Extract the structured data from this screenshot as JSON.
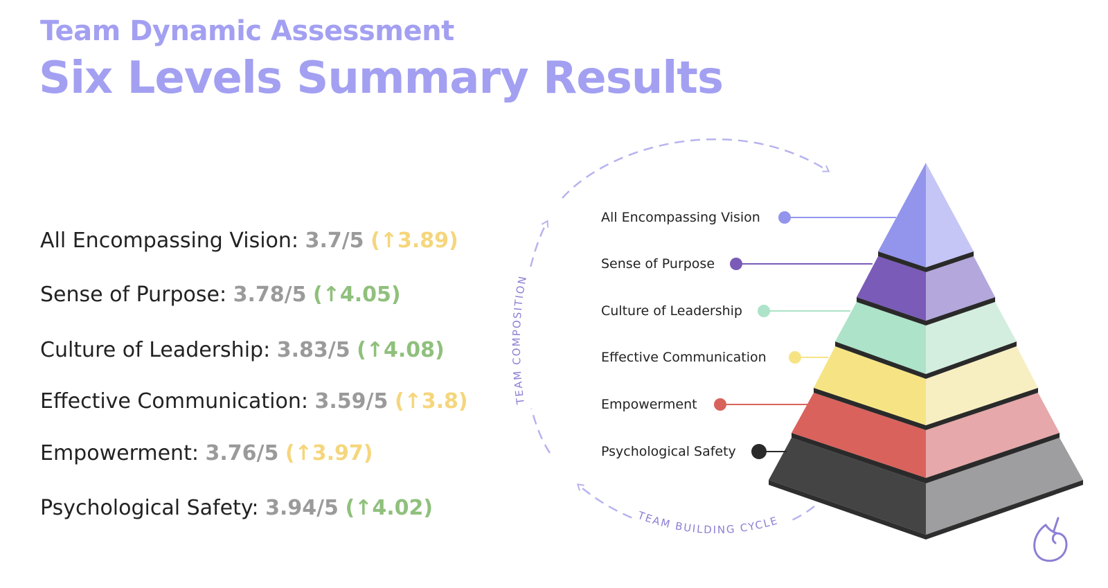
{
  "header": {
    "subtitle": "Team Dynamic Assessment",
    "title": "Six Levels Summary Results"
  },
  "scores": [
    {
      "name": "All Encompassing Vision:",
      "score": "3.7/5",
      "benchmark": "(↑3.89)",
      "benchmark_color": "yellow"
    },
    {
      "name": "Sense of Purpose:",
      "score": "3.78/5",
      "benchmark": "(↑4.05)",
      "benchmark_color": "green"
    },
    {
      "name": "Culture of Leadership:",
      "score": "3.83/5",
      "benchmark": "(↑4.08)",
      "benchmark_color": "green"
    },
    {
      "name": "Effective Communication:",
      "score": "3.59/5",
      "benchmark": "(↑3.8)",
      "benchmark_color": "yellow"
    },
    {
      "name": "Empowerment:",
      "score": "3.76/5",
      "benchmark": "(↑3.97)",
      "benchmark_color": "yellow"
    },
    {
      "name": "Psychological Safety:",
      "score": "3.94/5",
      "benchmark": "(↑4.02)",
      "benchmark_color": "green"
    }
  ],
  "pyramid": {
    "levels": [
      {
        "label": "All Encompassing Vision",
        "color_left": "#9394ec",
        "color_right": "#c5c6f6"
      },
      {
        "label": "Sense of Purpose",
        "color_left": "#7a5bb8",
        "color_right": "#b3a7dc"
      },
      {
        "label": "Culture of Leadership",
        "color_left": "#ade3c8",
        "color_right": "#d3eedf"
      },
      {
        "label": "Effective Communication",
        "color_left": "#f6e484",
        "color_right": "#f7efc2"
      },
      {
        "label": "Empowerment",
        "color_left": "#d9625c",
        "color_right": "#e6a8aa"
      },
      {
        "label": "Psychological Safety",
        "color_left": "#444444",
        "color_right": "#9e9ea0"
      }
    ],
    "cycle_labels": {
      "left": "TEAM COMPOSITION",
      "bottom": "TEAM BUILDING CYCLE"
    }
  },
  "colors": {
    "title": "#a3a0f2",
    "score_value": "#9a9a9a",
    "yellow": "#f5d67c",
    "green": "#8fc07c",
    "cycle": "#b7b3ee"
  },
  "icons": {
    "logo": "unicorn-logo-icon"
  }
}
